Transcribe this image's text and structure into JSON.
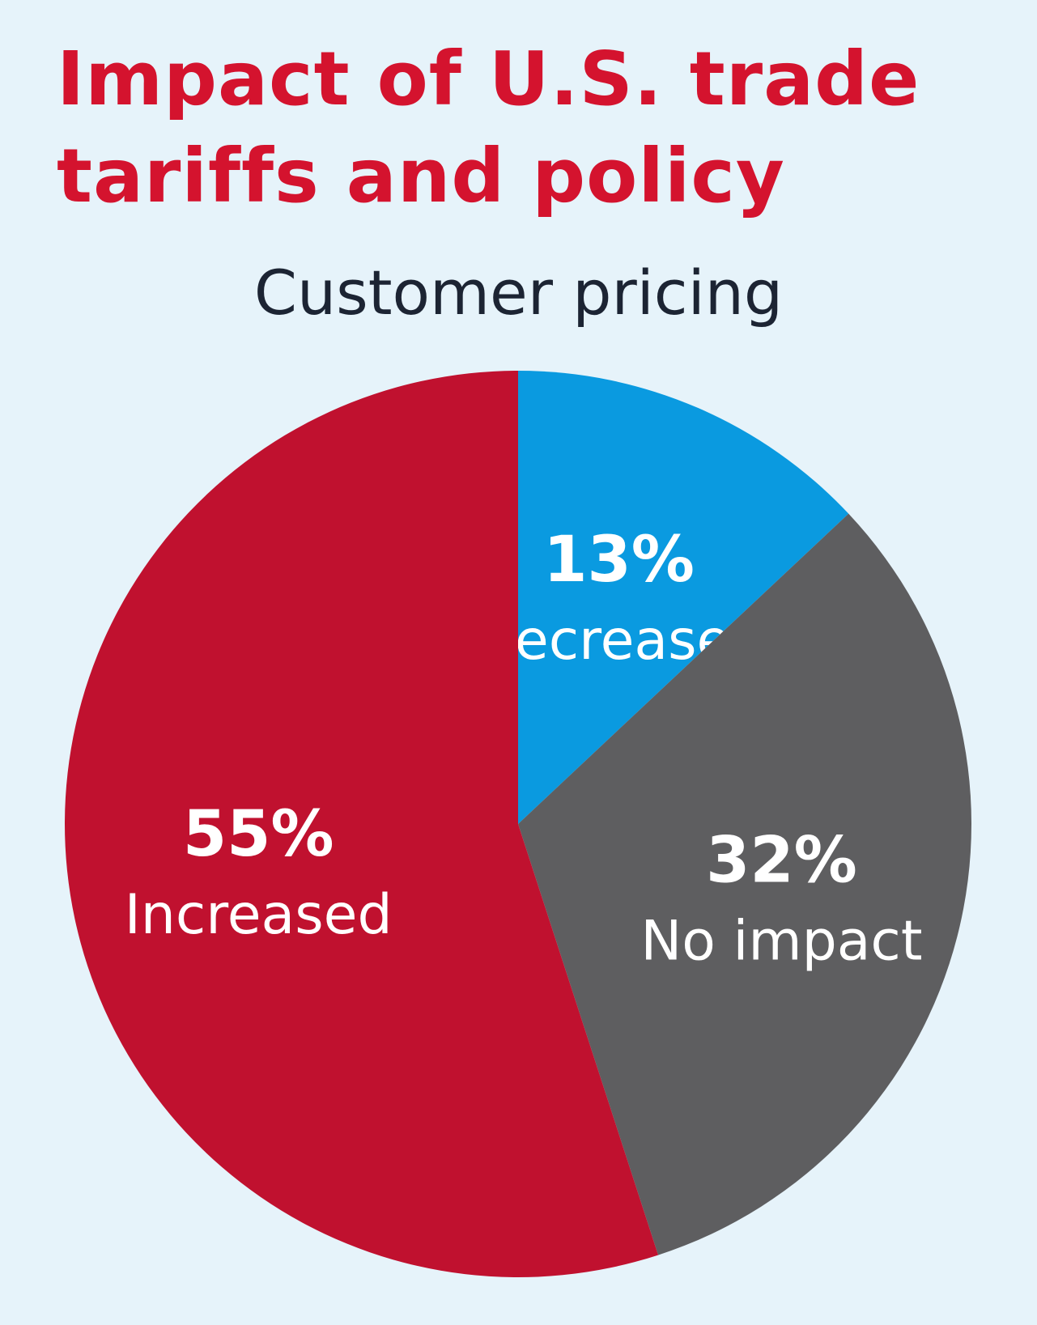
{
  "title_lines": [
    "Impact of U.S. trade",
    "tariffs and policy"
  ],
  "chart_data": {
    "type": "pie",
    "title": "Impact of U.S. trade tariffs and policy",
    "subtitle": "Customer pricing",
    "slices": [
      {
        "label": "Decreased",
        "value": 13,
        "value_label": "13%",
        "color": "#0a9ae0"
      },
      {
        "label": "No impact",
        "value": 32,
        "value_label": "32%",
        "color": "#5e5e60"
      },
      {
        "label": "Increased",
        "value": 55,
        "value_label": "55%",
        "color": "#c0112f"
      }
    ],
    "start": "12 o'clock",
    "direction": "clockwise"
  },
  "colors": {
    "background": "#e6f3fa",
    "title": "#d4132e",
    "subtitle": "#1c2433",
    "slice_text": "#ffffff"
  }
}
